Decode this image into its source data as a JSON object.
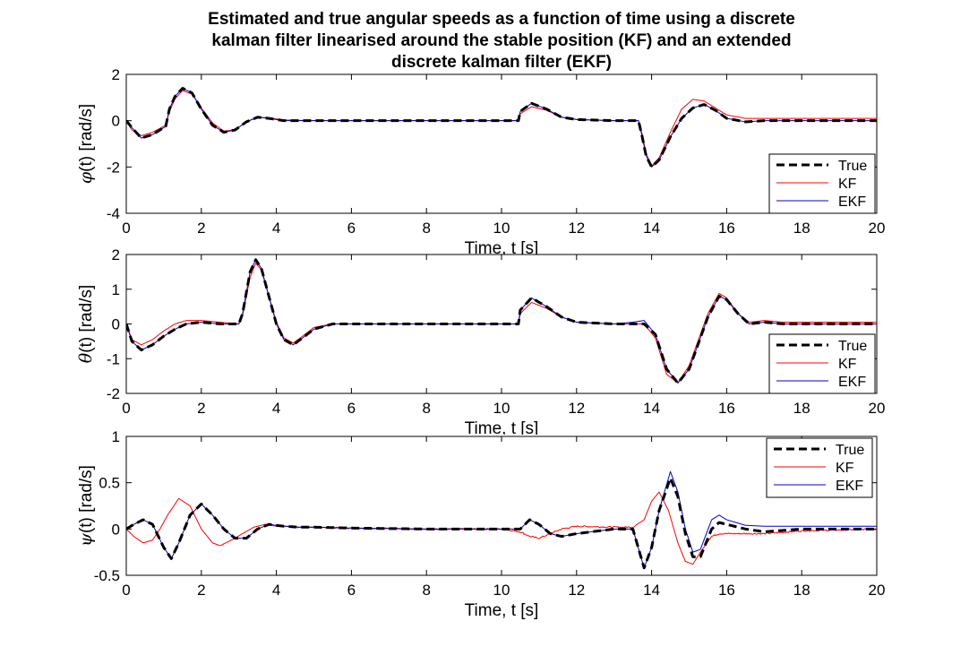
{
  "title_lines": [
    "Estimated and true angular speeds as a function of time using a discrete",
    "kalman filter linearised around the stable position (KF) and an extended",
    "discrete kalman filter (EKF)"
  ],
  "colors": {
    "True": "#000000",
    "KF": "#ff0000",
    "EKF": "#0000cc"
  },
  "chart_data": [
    {
      "type": "line",
      "ylabel_symbol": "φ",
      "ylabel_rest": "(t) [rad/s]",
      "xlabel": "Time,  t [s]",
      "xlim": [
        0,
        20
      ],
      "ylim": [
        -4,
        2
      ],
      "yticks": [
        -4,
        -2,
        0,
        2
      ],
      "xticks": [
        0,
        2,
        4,
        6,
        8,
        10,
        12,
        14,
        16,
        18,
        20
      ],
      "legend_position": "lower-right",
      "series": [
        {
          "name": "True",
          "style": "dashed",
          "x": [
            0,
            0.15,
            0.4,
            0.7,
            1.05,
            1.15,
            1.3,
            1.5,
            1.75,
            2.0,
            2.3,
            2.6,
            2.9,
            3.2,
            3.5,
            3.8,
            4.2,
            5,
            6,
            8,
            10,
            10.45,
            10.5,
            10.8,
            11.2,
            11.6,
            12,
            13,
            13.65,
            13.75,
            13.85,
            14.0,
            14.2,
            14.5,
            14.8,
            15.1,
            15.4,
            15.7,
            16.0,
            16.5,
            17,
            18,
            20
          ],
          "y": [
            0,
            -0.3,
            -0.75,
            -0.6,
            -0.25,
            0.5,
            1.05,
            1.4,
            1.2,
            0.5,
            -0.2,
            -0.5,
            -0.4,
            -0.05,
            0.15,
            0.1,
            0.0,
            0.0,
            0.0,
            0.0,
            0.0,
            0.0,
            0.4,
            0.75,
            0.5,
            0.15,
            0.05,
            0.0,
            0.0,
            -0.7,
            -1.5,
            -2.0,
            -1.7,
            -0.7,
            0.1,
            0.55,
            0.7,
            0.45,
            0.1,
            -0.05,
            0.0,
            0.0,
            0.0
          ]
        },
        {
          "name": "KF",
          "style": "solid",
          "x": [
            0,
            0.15,
            0.4,
            0.7,
            1.05,
            1.15,
            1.3,
            1.5,
            1.75,
            2.0,
            2.3,
            2.6,
            2.9,
            3.2,
            3.5,
            3.8,
            4.2,
            5,
            6,
            8,
            10,
            10.45,
            10.5,
            10.8,
            11.2,
            11.6,
            12,
            13,
            13.65,
            13.75,
            13.85,
            14.0,
            14.2,
            14.5,
            14.8,
            15.1,
            15.4,
            15.7,
            16.0,
            16.5,
            17,
            18,
            20
          ],
          "y": [
            0,
            -0.4,
            -0.65,
            -0.5,
            -0.2,
            0.4,
            0.95,
            1.3,
            1.15,
            0.55,
            -0.1,
            -0.45,
            -0.4,
            -0.05,
            0.15,
            0.12,
            0.03,
            0.0,
            0.0,
            0.0,
            0.0,
            0.0,
            0.3,
            0.6,
            0.45,
            0.15,
            0.05,
            0.0,
            0.0,
            -0.6,
            -1.4,
            -1.95,
            -1.6,
            -0.5,
            0.5,
            0.92,
            0.85,
            0.55,
            0.25,
            0.1,
            0.1,
            0.1,
            0.1
          ]
        },
        {
          "name": "EKF",
          "style": "solid",
          "x": [
            0,
            0.15,
            0.4,
            0.7,
            1.05,
            1.15,
            1.3,
            1.5,
            1.75,
            2.0,
            2.3,
            2.6,
            2.9,
            3.2,
            3.5,
            3.8,
            4.2,
            5,
            6,
            8,
            10,
            10.45,
            10.5,
            10.8,
            11.2,
            11.6,
            12,
            13,
            13.65,
            13.75,
            13.85,
            14.0,
            14.2,
            14.5,
            14.8,
            15.1,
            15.4,
            15.7,
            16.0,
            16.5,
            17,
            18,
            20
          ],
          "y": [
            0,
            -0.3,
            -0.75,
            -0.6,
            -0.25,
            0.5,
            1.05,
            1.4,
            1.2,
            0.5,
            -0.2,
            -0.5,
            -0.4,
            -0.05,
            0.15,
            0.1,
            0.0,
            0.0,
            0.0,
            0.0,
            0.0,
            0.0,
            0.4,
            0.75,
            0.5,
            0.15,
            0.05,
            0.0,
            0.0,
            -0.7,
            -1.5,
            -2.0,
            -1.7,
            -0.7,
            0.1,
            0.55,
            0.7,
            0.45,
            0.1,
            -0.05,
            0.0,
            0.0,
            0.0
          ]
        }
      ]
    },
    {
      "type": "line",
      "ylabel_symbol": "θ",
      "ylabel_rest": "(t)  [rad/s]",
      "xlabel": "Time,  t [s]",
      "xlim": [
        0,
        20
      ],
      "ylim": [
        -2,
        2
      ],
      "yticks": [
        -2,
        -1,
        0,
        1,
        2
      ],
      "xticks": [
        0,
        2,
        4,
        6,
        8,
        10,
        12,
        14,
        16,
        18,
        20
      ],
      "legend_position": "lower-right",
      "series": [
        {
          "name": "True",
          "style": "dashed",
          "x": [
            0,
            0.15,
            0.4,
            0.7,
            1.0,
            1.3,
            1.6,
            2.0,
            2.5,
            3.0,
            3.1,
            3.3,
            3.45,
            3.6,
            3.8,
            4.0,
            4.2,
            4.45,
            4.7,
            5.0,
            5.5,
            6,
            8,
            10,
            10.45,
            10.5,
            10.8,
            11.2,
            11.6,
            12,
            13,
            13.5,
            13.8,
            14.1,
            14.4,
            14.7,
            15.0,
            15.3,
            15.5,
            15.8,
            16.0,
            16.3,
            16.6,
            17,
            17.5,
            18,
            20
          ],
          "y": [
            0,
            -0.5,
            -0.75,
            -0.6,
            -0.35,
            -0.15,
            0.0,
            0.05,
            0.0,
            0.0,
            0.3,
            1.5,
            1.85,
            1.6,
            0.8,
            0.0,
            -0.45,
            -0.6,
            -0.4,
            -0.15,
            0.0,
            0.0,
            0.0,
            0.0,
            0.0,
            0.4,
            0.75,
            0.5,
            0.2,
            0.05,
            0.0,
            0.0,
            0.0,
            -0.3,
            -1.3,
            -1.7,
            -1.3,
            -0.4,
            0.2,
            0.8,
            0.7,
            0.3,
            0.0,
            0.05,
            0.0,
            0.0,
            0.0
          ]
        },
        {
          "name": "KF",
          "style": "solid",
          "x": [
            0,
            0.15,
            0.4,
            0.7,
            1.0,
            1.3,
            1.6,
            2.0,
            2.5,
            3.0,
            3.1,
            3.3,
            3.45,
            3.6,
            3.8,
            4.0,
            4.2,
            4.45,
            4.7,
            5.0,
            5.5,
            6,
            8,
            10,
            10.45,
            10.5,
            10.8,
            11.2,
            11.6,
            12,
            13,
            13.5,
            13.8,
            14.1,
            14.4,
            14.7,
            15.0,
            15.3,
            15.5,
            15.8,
            16.0,
            16.3,
            16.6,
            17,
            17.5,
            18,
            20
          ],
          "y": [
            0,
            -0.45,
            -0.6,
            -0.45,
            -0.2,
            0.0,
            0.1,
            0.1,
            0.05,
            0.0,
            0.25,
            1.35,
            1.75,
            1.55,
            0.8,
            0.05,
            -0.4,
            -0.55,
            -0.35,
            -0.1,
            0.0,
            0.0,
            0.0,
            0.0,
            0.0,
            0.3,
            0.62,
            0.45,
            0.2,
            0.05,
            0.0,
            0.0,
            0.0,
            -0.4,
            -1.45,
            -1.7,
            -1.2,
            -0.3,
            0.3,
            0.88,
            0.75,
            0.3,
            0.05,
            0.1,
            0.05,
            0.05,
            0.05
          ]
        },
        {
          "name": "EKF",
          "style": "solid",
          "x": [
            0,
            0.15,
            0.4,
            0.7,
            1.0,
            1.3,
            1.6,
            2.0,
            2.5,
            3.0,
            3.1,
            3.3,
            3.45,
            3.6,
            3.8,
            4.0,
            4.2,
            4.45,
            4.7,
            5.0,
            5.5,
            6,
            8,
            10,
            10.45,
            10.5,
            10.8,
            11.2,
            11.6,
            12,
            13,
            13.5,
            13.8,
            14.1,
            14.4,
            14.7,
            15.0,
            15.3,
            15.5,
            15.8,
            16.0,
            16.3,
            16.6,
            17,
            17.5,
            18,
            20
          ],
          "y": [
            0,
            -0.5,
            -0.75,
            -0.6,
            -0.35,
            -0.15,
            0.0,
            0.05,
            0.0,
            0.0,
            0.3,
            1.5,
            1.85,
            1.6,
            0.8,
            0.0,
            -0.45,
            -0.6,
            -0.4,
            -0.15,
            0.0,
            0.0,
            0.0,
            0.0,
            0.0,
            0.4,
            0.75,
            0.5,
            0.2,
            0.05,
            0.0,
            0.05,
            0.1,
            -0.3,
            -1.3,
            -1.7,
            -1.3,
            -0.4,
            0.2,
            0.8,
            0.7,
            0.3,
            0.0,
            0.05,
            0.0,
            0.0,
            0.0
          ]
        }
      ]
    },
    {
      "type": "line",
      "ylabel_symbol": "ψ",
      "ylabel_rest": "(t)  [rad/s]",
      "xlabel": "Time, t [s]",
      "xlim": [
        0,
        20
      ],
      "ylim": [
        -0.5,
        1
      ],
      "yticks": [
        -0.5,
        0,
        0.5,
        1
      ],
      "xticks": [
        0,
        2,
        4,
        6,
        8,
        10,
        12,
        14,
        16,
        18,
        20
      ],
      "legend_position": "upper-right",
      "series": [
        {
          "name": "True",
          "style": "dashed",
          "x": [
            0,
            0.2,
            0.45,
            0.7,
            1.0,
            1.2,
            1.4,
            1.7,
            2.0,
            2.3,
            2.6,
            2.9,
            3.2,
            3.5,
            3.8,
            4.2,
            4.6,
            5,
            6,
            8,
            10,
            10.5,
            10.75,
            11.0,
            11.3,
            11.6,
            12,
            13,
            13.5,
            13.8,
            14.0,
            14.2,
            14.5,
            14.7,
            14.9,
            15.1,
            15.3,
            15.6,
            15.8,
            16.0,
            16.5,
            17,
            18,
            20
          ],
          "y": [
            0,
            0.05,
            0.1,
            0.05,
            -0.2,
            -0.32,
            -0.15,
            0.15,
            0.27,
            0.15,
            0.0,
            -0.1,
            -0.1,
            0.0,
            0.05,
            0.03,
            0.02,
            0.02,
            0.01,
            0.0,
            0.0,
            0.0,
            0.1,
            0.05,
            -0.05,
            -0.08,
            -0.05,
            0.0,
            0.0,
            -0.42,
            -0.2,
            0.2,
            0.55,
            0.35,
            -0.05,
            -0.3,
            -0.3,
            0.0,
            0.07,
            0.05,
            0.0,
            -0.03,
            0.0,
            0.0
          ]
        },
        {
          "name": "KF",
          "style": "solid",
          "noise": true,
          "x": [
            0,
            0.2,
            0.45,
            0.7,
            0.9,
            1.1,
            1.4,
            1.7,
            2.0,
            2.3,
            2.5,
            2.8,
            3.1,
            3.4,
            3.7,
            4.0,
            4.3,
            4.6,
            5,
            6,
            8,
            10,
            10.5,
            10.75,
            11.0,
            11.3,
            11.6,
            12,
            13,
            13.5,
            13.8,
            14.0,
            14.2,
            14.45,
            14.7,
            14.9,
            15.1,
            15.3,
            15.6,
            15.8,
            16.0,
            16.5,
            17,
            18,
            20
          ],
          "y": [
            0,
            -0.08,
            -0.15,
            -0.12,
            0.0,
            0.15,
            0.33,
            0.25,
            0.0,
            -0.15,
            -0.18,
            -0.12,
            -0.05,
            0.02,
            0.05,
            0.03,
            0.03,
            0.02,
            0.02,
            0.01,
            0.0,
            0.0,
            -0.03,
            -0.08,
            -0.1,
            -0.05,
            0.0,
            0.03,
            0.02,
            0.02,
            0.1,
            0.3,
            0.4,
            0.2,
            -0.15,
            -0.35,
            -0.38,
            -0.25,
            -0.08,
            -0.05,
            -0.05,
            -0.05,
            -0.05,
            -0.02,
            0.0
          ]
        },
        {
          "name": "EKF",
          "style": "solid",
          "x": [
            0,
            0.2,
            0.45,
            0.7,
            1.0,
            1.2,
            1.4,
            1.7,
            2.0,
            2.3,
            2.6,
            2.9,
            3.2,
            3.5,
            3.8,
            4.2,
            4.6,
            5,
            6,
            8,
            10,
            10.5,
            10.75,
            11.0,
            11.3,
            11.6,
            12,
            13,
            13.5,
            13.8,
            14.0,
            14.2,
            14.5,
            14.7,
            14.9,
            15.1,
            15.3,
            15.6,
            15.8,
            16.0,
            16.5,
            17,
            18,
            20
          ],
          "y": [
            0,
            0.05,
            0.1,
            0.05,
            -0.2,
            -0.32,
            -0.15,
            0.15,
            0.27,
            0.15,
            0.0,
            -0.1,
            -0.1,
            0.0,
            0.05,
            0.03,
            0.02,
            0.02,
            0.01,
            0.0,
            0.0,
            0.0,
            0.1,
            0.05,
            -0.05,
            -0.08,
            -0.05,
            0.0,
            0.0,
            -0.42,
            -0.2,
            0.2,
            0.62,
            0.4,
            0.0,
            -0.25,
            -0.22,
            0.1,
            0.15,
            0.1,
            0.04,
            0.03,
            0.03,
            0.03
          ]
        }
      ]
    }
  ]
}
